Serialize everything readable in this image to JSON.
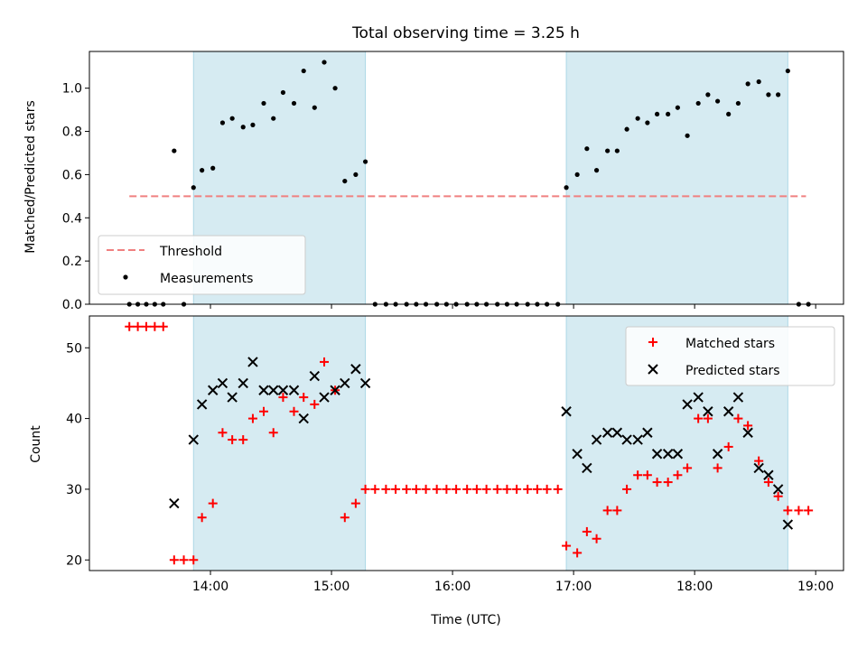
{
  "chart_data": [
    {
      "type": "scatter",
      "title": "Total observing time = 3.25 h",
      "ylabel": "Matched/Predicted stars",
      "ylim": [
        0,
        1.17
      ],
      "yticks": [
        "0.0",
        "0.2",
        "0.4",
        "0.6",
        "0.8",
        "1.0"
      ],
      "legend_position": "lower-left",
      "shaded_intervals_hours": [
        [
          13.86,
          15.28
        ],
        [
          16.94,
          18.77
        ]
      ],
      "threshold": {
        "name": "Threshold",
        "value": 0.5,
        "x_range_hours": [
          13.33,
          18.92
        ],
        "color": "#f08080"
      },
      "series": [
        {
          "name": "Measurements",
          "color": "#000000",
          "points": [
            [
              13.33,
              0
            ],
            [
              13.4,
              0
            ],
            [
              13.47,
              0
            ],
            [
              13.54,
              0
            ],
            [
              13.61,
              0
            ],
            [
              13.7,
              0.71
            ],
            [
              13.78,
              0
            ],
            [
              13.86,
              0.54
            ],
            [
              13.93,
              0.62
            ],
            [
              14.02,
              0.63
            ],
            [
              14.1,
              0.84
            ],
            [
              14.18,
              0.86
            ],
            [
              14.27,
              0.82
            ],
            [
              14.35,
              0.83
            ],
            [
              14.44,
              0.93
            ],
            [
              14.52,
              0.86
            ],
            [
              14.6,
              0.98
            ],
            [
              14.69,
              0.93
            ],
            [
              14.77,
              1.08
            ],
            [
              14.86,
              0.91
            ],
            [
              14.94,
              1.12
            ],
            [
              15.03,
              1.0
            ],
            [
              15.11,
              0.57
            ],
            [
              15.2,
              0.6
            ],
            [
              15.28,
              0.66
            ],
            [
              15.36,
              0
            ],
            [
              15.45,
              0
            ],
            [
              15.53,
              0
            ],
            [
              15.62,
              0
            ],
            [
              15.7,
              0
            ],
            [
              15.78,
              0
            ],
            [
              15.87,
              0
            ],
            [
              15.95,
              0
            ],
            [
              16.03,
              0
            ],
            [
              16.12,
              0
            ],
            [
              16.2,
              0
            ],
            [
              16.28,
              0
            ],
            [
              16.37,
              0
            ],
            [
              16.45,
              0
            ],
            [
              16.53,
              0
            ],
            [
              16.62,
              0
            ],
            [
              16.7,
              0
            ],
            [
              16.78,
              0
            ],
            [
              16.87,
              0
            ],
            [
              16.94,
              0.54
            ],
            [
              17.03,
              0.6
            ],
            [
              17.11,
              0.72
            ],
            [
              17.19,
              0.62
            ],
            [
              17.28,
              0.71
            ],
            [
              17.36,
              0.71
            ],
            [
              17.44,
              0.81
            ],
            [
              17.53,
              0.86
            ],
            [
              17.61,
              0.84
            ],
            [
              17.69,
              0.88
            ],
            [
              17.78,
              0.88
            ],
            [
              17.86,
              0.91
            ],
            [
              17.94,
              0.78
            ],
            [
              18.03,
              0.93
            ],
            [
              18.11,
              0.97
            ],
            [
              18.19,
              0.94
            ],
            [
              18.28,
              0.88
            ],
            [
              18.36,
              0.93
            ],
            [
              18.44,
              1.02
            ],
            [
              18.53,
              1.03
            ],
            [
              18.61,
              0.97
            ],
            [
              18.69,
              0.97
            ],
            [
              18.77,
              1.08
            ],
            [
              18.86,
              0
            ],
            [
              18.94,
              0
            ]
          ]
        }
      ]
    },
    {
      "type": "scatter",
      "xlabel": "Time (UTC)",
      "ylabel": "Count",
      "xlim_hours": [
        13.0,
        19.23
      ],
      "xticks_hours": [
        14,
        15,
        16,
        17,
        18,
        19
      ],
      "xtick_labels": [
        "14:00",
        "15:00",
        "16:00",
        "17:00",
        "18:00",
        "19:00"
      ],
      "ylim": [
        18.5,
        54.5
      ],
      "yticks": [
        20,
        30,
        40,
        50
      ],
      "legend_position": "upper-right",
      "series": [
        {
          "name": "Matched stars",
          "marker": "plus",
          "color": "#ff0000",
          "points": [
            [
              13.33,
              53
            ],
            [
              13.4,
              53
            ],
            [
              13.47,
              53
            ],
            [
              13.54,
              53
            ],
            [
              13.61,
              53
            ],
            [
              13.7,
              20
            ],
            [
              13.78,
              20
            ],
            [
              13.86,
              20
            ],
            [
              13.93,
              26
            ],
            [
              14.02,
              28
            ],
            [
              14.1,
              38
            ],
            [
              14.18,
              37
            ],
            [
              14.27,
              37
            ],
            [
              14.35,
              40
            ],
            [
              14.44,
              41
            ],
            [
              14.52,
              38
            ],
            [
              14.6,
              43
            ],
            [
              14.69,
              41
            ],
            [
              14.77,
              43
            ],
            [
              14.86,
              42
            ],
            [
              14.94,
              48
            ],
            [
              15.03,
              44
            ],
            [
              15.11,
              26
            ],
            [
              15.2,
              28
            ],
            [
              15.28,
              30
            ],
            [
              15.36,
              30
            ],
            [
              15.45,
              30
            ],
            [
              15.53,
              30
            ],
            [
              15.62,
              30
            ],
            [
              15.7,
              30
            ],
            [
              15.78,
              30
            ],
            [
              15.87,
              30
            ],
            [
              15.95,
              30
            ],
            [
              16.03,
              30
            ],
            [
              16.12,
              30
            ],
            [
              16.2,
              30
            ],
            [
              16.28,
              30
            ],
            [
              16.37,
              30
            ],
            [
              16.45,
              30
            ],
            [
              16.53,
              30
            ],
            [
              16.62,
              30
            ],
            [
              16.7,
              30
            ],
            [
              16.78,
              30
            ],
            [
              16.87,
              30
            ],
            [
              16.94,
              22
            ],
            [
              17.03,
              21
            ],
            [
              17.11,
              24
            ],
            [
              17.19,
              23
            ],
            [
              17.28,
              27
            ],
            [
              17.36,
              27
            ],
            [
              17.44,
              30
            ],
            [
              17.53,
              32
            ],
            [
              17.61,
              32
            ],
            [
              17.69,
              31
            ],
            [
              17.78,
              31
            ],
            [
              17.86,
              32
            ],
            [
              17.94,
              33
            ],
            [
              18.03,
              40
            ],
            [
              18.11,
              40
            ],
            [
              18.19,
              33
            ],
            [
              18.28,
              36
            ],
            [
              18.36,
              40
            ],
            [
              18.44,
              39
            ],
            [
              18.53,
              34
            ],
            [
              18.61,
              31
            ],
            [
              18.69,
              29
            ],
            [
              18.77,
              27
            ],
            [
              18.86,
              27
            ],
            [
              18.94,
              27
            ]
          ]
        },
        {
          "name": "Predicted stars",
          "marker": "x",
          "color": "#000000",
          "points": [
            [
              13.7,
              28
            ],
            [
              13.86,
              37
            ],
            [
              13.93,
              42
            ],
            [
              14.02,
              44
            ],
            [
              14.1,
              45
            ],
            [
              14.18,
              43
            ],
            [
              14.27,
              45
            ],
            [
              14.35,
              48
            ],
            [
              14.44,
              44
            ],
            [
              14.52,
              44
            ],
            [
              14.6,
              44
            ],
            [
              14.69,
              44
            ],
            [
              14.77,
              40
            ],
            [
              14.86,
              46
            ],
            [
              14.94,
              43
            ],
            [
              15.03,
              44
            ],
            [
              15.11,
              45
            ],
            [
              15.2,
              47
            ],
            [
              15.28,
              45
            ],
            [
              16.94,
              41
            ],
            [
              17.03,
              35
            ],
            [
              17.11,
              33
            ],
            [
              17.19,
              37
            ],
            [
              17.28,
              38
            ],
            [
              17.36,
              38
            ],
            [
              17.44,
              37
            ],
            [
              17.53,
              37
            ],
            [
              17.61,
              38
            ],
            [
              17.69,
              35
            ],
            [
              17.78,
              35
            ],
            [
              17.86,
              35
            ],
            [
              17.94,
              42
            ],
            [
              18.03,
              43
            ],
            [
              18.11,
              41
            ],
            [
              18.19,
              35
            ],
            [
              18.28,
              41
            ],
            [
              18.36,
              43
            ],
            [
              18.44,
              38
            ],
            [
              18.53,
              33
            ],
            [
              18.61,
              32
            ],
            [
              18.69,
              30
            ],
            [
              18.77,
              25
            ]
          ]
        }
      ]
    }
  ]
}
